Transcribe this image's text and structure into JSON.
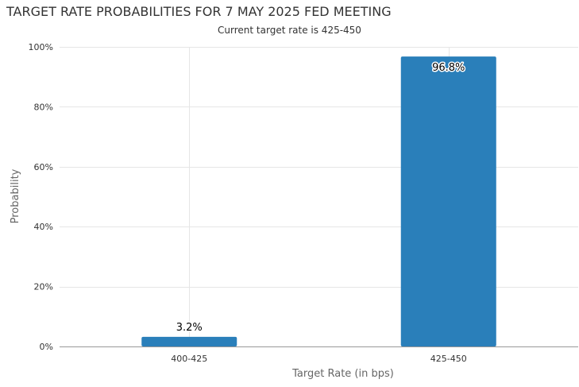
{
  "chart_data": {
    "type": "bar",
    "title": "TARGET RATE PROBABILITIES FOR 7 MAY 2025 FED MEETING",
    "subtitle": "Current target rate is 425-450",
    "xlabel": "Target Rate (in bps)",
    "ylabel": "Probability",
    "categories": [
      "400-425",
      "425-450"
    ],
    "values": [
      3.2,
      96.8
    ],
    "data_labels": [
      "3.2%",
      "96.8%"
    ],
    "ylim": [
      0,
      100
    ],
    "yticks": [
      0,
      20,
      40,
      60,
      80,
      100
    ],
    "ytick_labels": [
      "0%",
      "20%",
      "40%",
      "60%",
      "80%",
      "100%"
    ],
    "grid": true,
    "bar_color": "#2a7fba"
  }
}
